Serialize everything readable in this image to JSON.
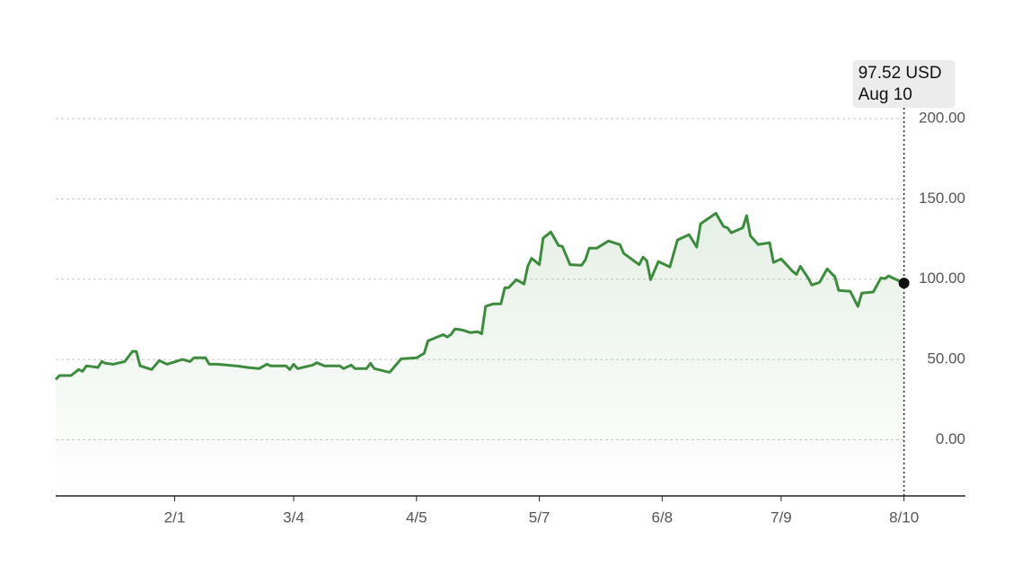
{
  "chart_data": {
    "type": "area",
    "x": [
      "1/1",
      "1/2",
      "1/5",
      "1/7",
      "1/8",
      "1/9",
      "1/12",
      "1/13",
      "1/14",
      "1/16",
      "1/19",
      "1/21",
      "1/22",
      "1/23",
      "1/26",
      "1/28",
      "1/30",
      "2/3",
      "2/5",
      "2/6",
      "2/9",
      "2/10",
      "2/12",
      "2/17",
      "2/20",
      "2/23",
      "2/25",
      "2/26",
      "3/2",
      "3/3",
      "3/4",
      "3/5",
      "3/9",
      "3/10",
      "3/12",
      "3/16",
      "3/17",
      "3/19",
      "3/20",
      "3/23",
      "3/24",
      "3/25",
      "3/29",
      "4/1",
      "4/5",
      "4/7",
      "4/8",
      "4/12",
      "4/13",
      "4/14",
      "4/15",
      "4/17",
      "4/19",
      "4/21",
      "4/22",
      "4/23",
      "4/25",
      "4/27",
      "4/28",
      "4/29",
      "5/1",
      "5/3",
      "5/4",
      "5/5",
      "5/7",
      "5/8",
      "5/10",
      "5/12",
      "5/13",
      "5/15",
      "5/18",
      "5/19",
      "5/20",
      "5/22",
      "5/25",
      "5/28",
      "5/29",
      "6/2",
      "6/3",
      "6/4",
      "6/5",
      "6/7",
      "6/10",
      "6/12",
      "6/15",
      "6/17",
      "6/18",
      "6/22",
      "6/24",
      "6/25",
      "6/26",
      "6/29",
      "6/30",
      "7/1",
      "7/3",
      "7/6",
      "7/7",
      "7/9",
      "7/12",
      "7/13",
      "7/14",
      "7/16",
      "7/17",
      "7/19",
      "7/21",
      "7/23",
      "7/24",
      "7/27",
      "7/29",
      "7/30",
      "8/2",
      "8/4",
      "8/5",
      "8/6",
      "8/8",
      "8/10"
    ],
    "series": [
      {
        "color": "#3d8b3d",
        "values": [
          37.5,
          40,
          40,
          43.7,
          42.6,
          46,
          45,
          48.7,
          47.6,
          47,
          48.7,
          55,
          55,
          46,
          43.7,
          49.3,
          47,
          50,
          48.7,
          51,
          51,
          47,
          47,
          46,
          45,
          44.3,
          47,
          46,
          46,
          43.7,
          47,
          44.3,
          46.5,
          48,
          46,
          46,
          44.3,
          46.5,
          44.3,
          44.3,
          47.6,
          44.3,
          42,
          50.4,
          51,
          53.8,
          61.6,
          65.5,
          64,
          65.5,
          69,
          68.3,
          66.7,
          67.2,
          66,
          83,
          84.6,
          84.6,
          94.7,
          94.7,
          99.7,
          97,
          108,
          113,
          109,
          125.5,
          129.4,
          121,
          120.4,
          109,
          108.7,
          112,
          119.3,
          119.3,
          123.8,
          121.5,
          116,
          109,
          113.7,
          111.5,
          99.7,
          111,
          107.6,
          124.4,
          127.7,
          120,
          134.5,
          141,
          132.8,
          132,
          128.9,
          132,
          139.5,
          127,
          121.6,
          122.7,
          110.4,
          112.6,
          104.8,
          103,
          108,
          100.8,
          96.4,
          98,
          106.4,
          101.4,
          93,
          92.4,
          83,
          91.3,
          92,
          100.8,
          100.3,
          102,
          99.7,
          97.52
        ]
      }
    ],
    "xlim": [
      "1/1",
      "8/26"
    ],
    "xticks": [
      "2/1",
      "3/4",
      "4/5",
      "5/7",
      "6/8",
      "7/9",
      "8/10"
    ],
    "ylim": [
      -35,
      200
    ],
    "yticks": [
      {
        "value": 0,
        "label": "0.00"
      },
      {
        "value": 50,
        "label": "50.00"
      },
      {
        "value": 100,
        "label": "100.00"
      },
      {
        "value": 150,
        "label": "150.00"
      },
      {
        "value": 200,
        "label": "200.00"
      }
    ],
    "grid": true,
    "last_point": {
      "label": "97.52 USD",
      "date": "Aug 10"
    }
  }
}
